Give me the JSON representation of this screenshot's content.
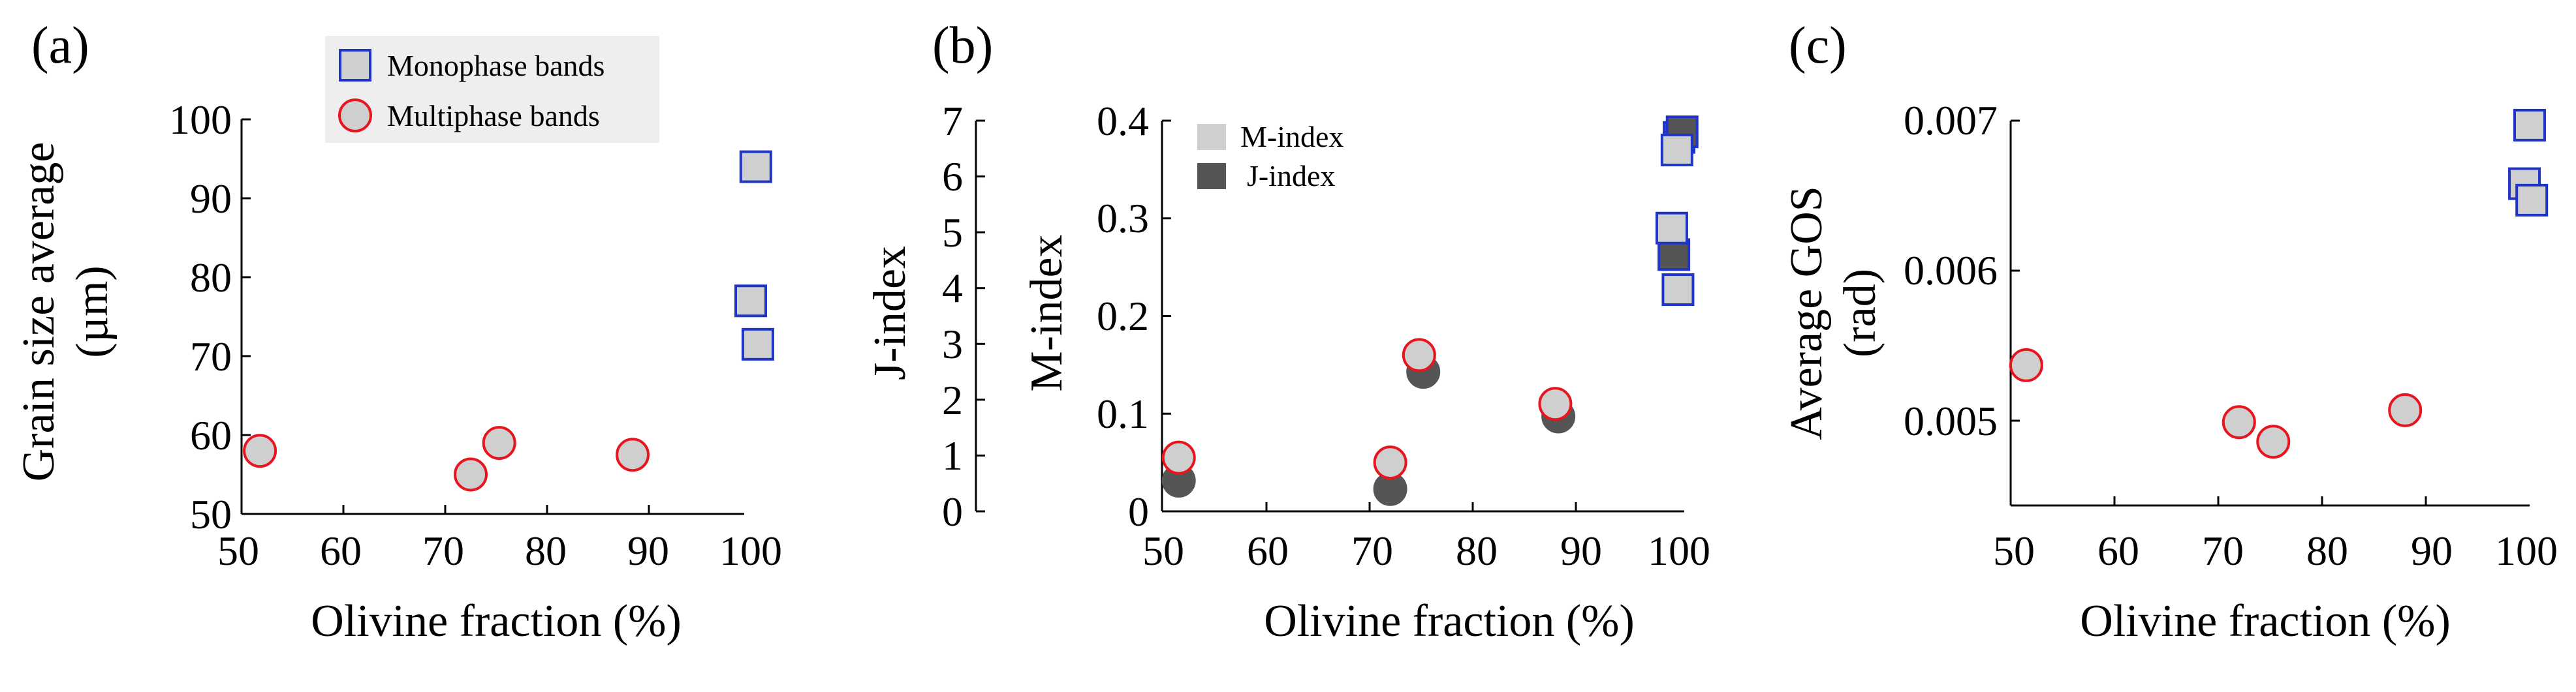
{
  "colors": {
    "monophase_edge": "#2035c8",
    "multiphase_edge": "#e8141e",
    "marker_fill": "#cfcfcf",
    "dark_fill": "#555555",
    "legend_bg": "#eeeeee"
  },
  "legend_a": {
    "monophase": "Monophase bands",
    "multiphase": "Multiphase bands"
  },
  "chart_data": [
    {
      "panel": "(a)",
      "type": "scatter",
      "xlabel": "Olivine fraction (%)",
      "ylabel_lines": [
        "Grain size average",
        "(µm)"
      ],
      "xlim": [
        50,
        100
      ],
      "ylim": [
        50,
        100
      ],
      "xticks": [
        "50",
        "60",
        "70",
        "80",
        "90",
        "100"
      ],
      "yticks": [
        "50",
        "60",
        "70",
        "80",
        "90",
        "100"
      ],
      "legend": [
        "Monophase bands",
        "Multiphase bands"
      ],
      "series": [
        {
          "name": "Monophase bands",
          "marker": "square",
          "points": [
            [
              100.5,
              94
            ],
            [
              100,
              77
            ],
            [
              100.7,
              71.5
            ]
          ]
        },
        {
          "name": "Multiphase bands",
          "marker": "circle",
          "points": [
            [
              51.8,
              58
            ],
            [
              72.5,
              55
            ],
            [
              75.3,
              59
            ],
            [
              88.4,
              57.5
            ]
          ]
        }
      ]
    },
    {
      "panel": "(b)",
      "type": "scatter",
      "xlabel": "Olivine fraction (%)",
      "ylabel_left": "J-index",
      "ylabel_right": "M-index",
      "xlim": [
        50,
        100
      ],
      "ylim_m": [
        0,
        0.4
      ],
      "ylim_j": [
        0,
        7
      ],
      "xticks": [
        "50",
        "60",
        "70",
        "80",
        "90",
        "100"
      ],
      "yticks_m": [
        "0",
        "0.1",
        "0.2",
        "0.3",
        "0.4"
      ],
      "yticks_j": [
        "0",
        "1",
        "2",
        "3",
        "4",
        "5",
        "6",
        "7"
      ],
      "legend": [
        "M-index",
        "J-index"
      ],
      "series": [
        {
          "name": "J-index monophase",
          "marker": "square",
          "fill": "dark",
          "edge": "blue",
          "points": [
            [
              100,
              6.7
            ],
            [
              100.3,
              6.8
            ],
            [
              99.5,
              4.6
            ]
          ]
        },
        {
          "name": "M-index monophase",
          "marker": "square",
          "fill": "light",
          "edge": "blue",
          "points": [
            [
              99.8,
              0.37
            ],
            [
              99.3,
              0.29
            ],
            [
              99.9,
              0.227
            ]
          ]
        },
        {
          "name": "J-index multiphase",
          "marker": "circle",
          "fill": "dark",
          "edge": "dark",
          "points": [
            [
              51.5,
              0.55
            ],
            [
              72,
              0.4
            ],
            [
              75.2,
              2.5
            ],
            [
              88.3,
              1.7
            ]
          ]
        },
        {
          "name": "M-index multiphase",
          "marker": "circle",
          "fill": "light",
          "edge": "red",
          "points": [
            [
              51.5,
              0.055
            ],
            [
              72,
              0.05
            ],
            [
              74.8,
              0.16
            ],
            [
              88,
              0.11
            ]
          ]
        }
      ]
    },
    {
      "panel": "(c)",
      "type": "scatter",
      "xlabel": "Olivine fraction (%)",
      "ylabel_lines": [
        "Average GOS",
        "(rad)"
      ],
      "xlim": [
        50,
        100
      ],
      "ylim": [
        0.0045,
        0.007
      ],
      "xticks": [
        "50",
        "60",
        "70",
        "80",
        "90",
        "100"
      ],
      "yticks": [
        "0.005",
        "0.006",
        "0.007"
      ],
      "series": [
        {
          "name": "Monophase bands",
          "marker": "square",
          "points": [
            [
              100,
              0.00697
            ],
            [
              99.5,
              0.00658
            ],
            [
              100.2,
              0.00647
            ]
          ]
        },
        {
          "name": "Multiphase bands",
          "marker": "circle",
          "points": [
            [
              51.5,
              0.00537
            ],
            [
              72,
              0.00499
            ],
            [
              75.3,
              0.00486
            ],
            [
              88,
              0.00507
            ]
          ]
        }
      ]
    }
  ]
}
